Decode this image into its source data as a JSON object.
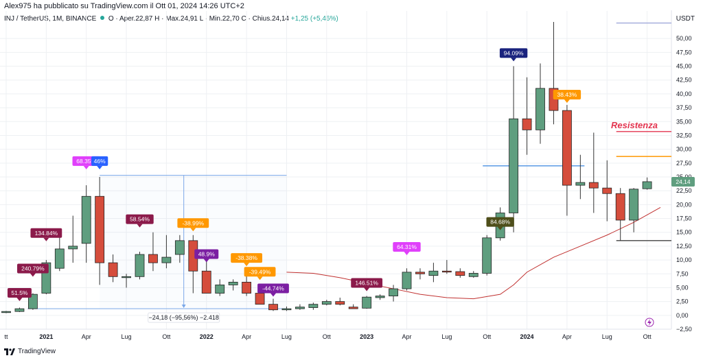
{
  "header": {
    "publisher_line": "Alex975 ha pubblicato su TradingView.com il Ott 01, 2024 14:26 UTC+2"
  },
  "legend": {
    "symbol": "INJ / TetherUS, 1M, BINANCE",
    "open": "O · Aper.22,87",
    "high": "H · Max.24,91",
    "low": "L · Min.22,70",
    "close": "C · Chius.24,14",
    "change": "+1,25 (+5,46%)"
  },
  "axis": {
    "unit": "USDT",
    "current_price": "24,14"
  },
  "annotations": {
    "resistance_label": "Resistenza",
    "measure_label": "−24,18 (−95,56%) −2.418"
  },
  "footer": {
    "brand": "TradingView"
  },
  "colors": {
    "up": "#5f9e7f",
    "down": "#d54d3c",
    "ma": "#c0302f",
    "resistance": "#e3344f",
    "blue_line": "#4a90e2",
    "measure": "#7aa7e8"
  },
  "chart_data": {
    "type": "candlestick",
    "timeframe": "1M",
    "symbol": "INJ / TetherUS",
    "ylim": [
      -2.5,
      52.5
    ],
    "yticks": [
      -2.5,
      0,
      2.5,
      5,
      7.5,
      10,
      12.5,
      15,
      17.5,
      20,
      22.5,
      25,
      27.5,
      30,
      32.5,
      35,
      37.5,
      40,
      42.5,
      45,
      47.5,
      50
    ],
    "ytick_labels": [
      "−2,50",
      "0,00",
      "2,50",
      "5,00",
      "7,50",
      "10,00",
      "12,50",
      "15,00",
      "17,50",
      "20,00",
      "22,50",
      "25,00",
      "27,50",
      "30,00",
      "32,50",
      "35,00",
      "37,50",
      "40,00",
      "42,50",
      "45,00",
      "47,50",
      "50,00"
    ],
    "x_labels": [
      {
        "text": "tt",
        "index": 0,
        "bold": false
      },
      {
        "text": "2021",
        "index": 3,
        "bold": true
      },
      {
        "text": "Apr",
        "index": 6,
        "bold": false
      },
      {
        "text": "Lug",
        "index": 9,
        "bold": false
      },
      {
        "text": "Ott",
        "index": 12,
        "bold": false
      },
      {
        "text": "2022",
        "index": 15,
        "bold": true
      },
      {
        "text": "Apr",
        "index": 18,
        "bold": false
      },
      {
        "text": "Lug",
        "index": 21,
        "bold": false
      },
      {
        "text": "Ott",
        "index": 24,
        "bold": false
      },
      {
        "text": "2023",
        "index": 27,
        "bold": true
      },
      {
        "text": "Apr",
        "index": 30,
        "bold": false
      },
      {
        "text": "Lug",
        "index": 33,
        "bold": false
      },
      {
        "text": "Ott",
        "index": 36,
        "bold": false
      },
      {
        "text": "2024",
        "index": 39,
        "bold": true
      },
      {
        "text": "Apr",
        "index": 42,
        "bold": false
      },
      {
        "text": "Lug",
        "index": 45,
        "bold": false
      },
      {
        "text": "Ott",
        "index": 48,
        "bold": false
      }
    ],
    "candles": [
      {
        "o": 0.5,
        "h": 0.8,
        "l": 0.4,
        "c": 0.7
      },
      {
        "o": 0.7,
        "h": 1.4,
        "l": 0.6,
        "c": 1.2
      },
      {
        "o": 1.2,
        "h": 4.0,
        "l": 1.0,
        "c": 3.8
      },
      {
        "o": 4.0,
        "h": 10.0,
        "l": 3.8,
        "c": 9.5
      },
      {
        "o": 8.5,
        "h": 14.5,
        "l": 8.0,
        "c": 12.0
      },
      {
        "o": 12.0,
        "h": 18.0,
        "l": 9.5,
        "c": 12.5
      },
      {
        "o": 13.0,
        "h": 23.5,
        "l": 9.5,
        "c": 21.5
      },
      {
        "o": 21.5,
        "h": 25.0,
        "l": 5.5,
        "c": 9.5
      },
      {
        "o": 9.5,
        "h": 11.0,
        "l": 6.0,
        "c": 7.0
      },
      {
        "o": 7.0,
        "h": 7.5,
        "l": 5.0,
        "c": 7.0
      },
      {
        "o": 7.0,
        "h": 11.5,
        "l": 6.5,
        "c": 11.0
      },
      {
        "o": 11.0,
        "h": 15.0,
        "l": 8.0,
        "c": 9.5
      },
      {
        "o": 9.5,
        "h": 14.5,
        "l": 8.5,
        "c": 10.5
      },
      {
        "o": 11.0,
        "h": 14.5,
        "l": 9.5,
        "c": 13.5
      },
      {
        "o": 13.5,
        "h": 14.5,
        "l": 4.0,
        "c": 8.0
      },
      {
        "o": 8.0,
        "h": 10.0,
        "l": 4.0,
        "c": 4.0
      },
      {
        "o": 4.0,
        "h": 6.5,
        "l": 3.5,
        "c": 5.5
      },
      {
        "o": 5.5,
        "h": 6.5,
        "l": 4.5,
        "c": 6.0
      },
      {
        "o": 6.0,
        "h": 7.5,
        "l": 3.5,
        "c": 4.0
      },
      {
        "o": 4.0,
        "h": 5.0,
        "l": 2.0,
        "c": 2.0
      },
      {
        "o": 2.0,
        "h": 3.0,
        "l": 0.8,
        "c": 1.0
      },
      {
        "o": 1.0,
        "h": 1.6,
        "l": 0.8,
        "c": 1.2
      },
      {
        "o": 1.2,
        "h": 2.0,
        "l": 1.0,
        "c": 1.5
      },
      {
        "o": 1.4,
        "h": 2.3,
        "l": 1.0,
        "c": 2.0
      },
      {
        "o": 2.0,
        "h": 2.8,
        "l": 1.8,
        "c": 2.5
      },
      {
        "o": 2.5,
        "h": 3.2,
        "l": 1.8,
        "c": 2.0
      },
      {
        "o": 1.5,
        "h": 2.0,
        "l": 1.2,
        "c": 1.2
      },
      {
        "o": 1.3,
        "h": 3.5,
        "l": 1.2,
        "c": 3.3
      },
      {
        "o": 3.2,
        "h": 3.8,
        "l": 2.8,
        "c": 3.5
      },
      {
        "o": 3.5,
        "h": 5.5,
        "l": 2.5,
        "c": 4.8
      },
      {
        "o": 4.8,
        "h": 8.5,
        "l": 4.5,
        "c": 7.8
      },
      {
        "o": 7.8,
        "h": 8.5,
        "l": 6.5,
        "c": 7.5
      },
      {
        "o": 7.2,
        "h": 9.5,
        "l": 6.0,
        "c": 8.0
      },
      {
        "o": 8.0,
        "h": 10.0,
        "l": 7.5,
        "c": 7.9
      },
      {
        "o": 7.9,
        "h": 8.5,
        "l": 6.8,
        "c": 7.2
      },
      {
        "o": 7.0,
        "h": 8.0,
        "l": 6.8,
        "c": 7.6
      },
      {
        "o": 7.6,
        "h": 14.5,
        "l": 7.2,
        "c": 14.0
      },
      {
        "o": 14.0,
        "h": 19.5,
        "l": 13.5,
        "c": 18.5
      },
      {
        "o": 18.5,
        "h": 45.0,
        "l": 15.0,
        "c": 35.5
      },
      {
        "o": 35.5,
        "h": 43.0,
        "l": 29.0,
        "c": 33.5
      },
      {
        "o": 33.5,
        "h": 45.5,
        "l": 31.0,
        "c": 41.0
      },
      {
        "o": 41.0,
        "h": 53.0,
        "l": 34.5,
        "c": 37.0
      },
      {
        "o": 37.0,
        "h": 38.0,
        "l": 18.0,
        "c": 23.5
      },
      {
        "o": 23.5,
        "h": 29.0,
        "l": 21.0,
        "c": 24.0
      },
      {
        "o": 24.0,
        "h": 33.0,
        "l": 18.5,
        "c": 23.0
      },
      {
        "o": 23.0,
        "h": 28.0,
        "l": 17.0,
        "c": 22.0
      },
      {
        "o": 22.0,
        "h": 23.0,
        "l": 13.5,
        "c": 17.2
      },
      {
        "o": 17.2,
        "h": 23.0,
        "l": 15.0,
        "c": 22.8
      },
      {
        "o": 22.87,
        "h": 24.91,
        "l": 22.7,
        "c": 24.14
      }
    ],
    "moving_average": [
      {
        "i": 21,
        "v": 7.8
      },
      {
        "i": 23,
        "v": 7.6
      },
      {
        "i": 25,
        "v": 6.8
      },
      {
        "i": 27,
        "v": 5.8
      },
      {
        "i": 29,
        "v": 4.8
      },
      {
        "i": 31,
        "v": 3.8
      },
      {
        "i": 33,
        "v": 3.2
      },
      {
        "i": 35,
        "v": 3.0
      },
      {
        "i": 37,
        "v": 3.8
      },
      {
        "i": 38,
        "v": 5.5
      },
      {
        "i": 39,
        "v": 7.8
      },
      {
        "i": 41,
        "v": 10.5
      },
      {
        "i": 43,
        "v": 12.5
      },
      {
        "i": 45,
        "v": 14.5
      },
      {
        "i": 47,
        "v": 16.8
      },
      {
        "i": 49,
        "v": 19.5
      }
    ],
    "pct_labels": [
      {
        "text": "51.5%",
        "i": 1,
        "v": 3.2,
        "color": "#8b1a4a"
      },
      {
        "text": "240.79%",
        "i": 2,
        "v": 7.6,
        "color": "#8b1a4a"
      },
      {
        "text": "134.84%",
        "i": 3,
        "v": 14.0,
        "color": "#8b1a4a"
      },
      {
        "text": "68.35%",
        "i": 6,
        "v": 27.0,
        "color": "#e040fb"
      },
      {
        "text": "46%",
        "i": 7,
        "v": 27.0,
        "color": "#2962ff"
      },
      {
        "text": "58.54%",
        "i": 10,
        "v": 16.5,
        "color": "#8b1a4a"
      },
      {
        "text": "-38.99%",
        "i": 14,
        "v": 15.8,
        "color": "#ff9800"
      },
      {
        "text": "48.9%",
        "i": 15,
        "v": 10.2,
        "color": "#7b1fa2"
      },
      {
        "text": "-38.38%",
        "i": 18,
        "v": 9.5,
        "color": "#ff9800"
      },
      {
        "text": "-39.49%",
        "i": 19,
        "v": 7.0,
        "color": "#ff9800"
      },
      {
        "text": "-44.74%",
        "i": 20,
        "v": 4.0,
        "color": "#7b1fa2"
      },
      {
        "text": "146.51%",
        "i": 27,
        "v": 5.0,
        "color": "#8b1a4a"
      },
      {
        "text": "64.31%",
        "i": 30,
        "v": 11.5,
        "color": "#e040fb"
      },
      {
        "text": "84.68%",
        "i": 37,
        "v": 16.0,
        "color": "#4e4e1a"
      },
      {
        "text": "94.09%",
        "i": 38,
        "v": 46.5,
        "color": "#1a237e"
      },
      {
        "text": "38.43%",
        "i": 42,
        "v": 39.0,
        "color": "#ff9800"
      }
    ],
    "horizontal_lines": [
      {
        "name": "top-line",
        "v": 52.8,
        "from": 46,
        "to": 49,
        "color": "#9fa8da"
      },
      {
        "name": "resistance-line",
        "v": 33.2,
        "from": 46,
        "to": 49,
        "color": "#e3344f"
      },
      {
        "name": "orange-line",
        "v": 28.7,
        "from": 46,
        "to": 49,
        "color": "#ff9800"
      },
      {
        "name": "blue-line",
        "v": 27.0,
        "from": 36,
        "to": 43,
        "color": "#4a90e2"
      },
      {
        "name": "support-line",
        "v": 13.5,
        "from": 46,
        "to": 49,
        "color": "#424242"
      }
    ],
    "measure": {
      "from_i": 7,
      "to_i": 21,
      "top": 25.3,
      "bottom": 1.2
    }
  }
}
